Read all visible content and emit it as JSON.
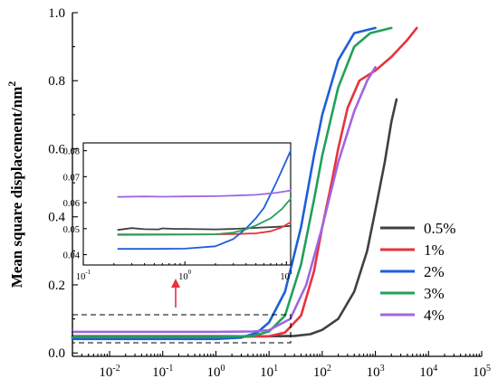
{
  "chart_data": {
    "type": "line",
    "ylabel": "Mean square displacement/nm²",
    "ylabel_base": "Mean square displacement/nm",
    "ylabel_sup": "2",
    "xscale": "log",
    "xlim": [
      0.002,
      100000
    ],
    "ylim": [
      -0.01,
      1.0
    ],
    "x_ticks": [
      {
        "value": 0.01,
        "label": "10",
        "exp": "-2"
      },
      {
        "value": 0.1,
        "label": "10",
        "exp": "-1"
      },
      {
        "value": 1,
        "label": "10",
        "exp": "0"
      },
      {
        "value": 10,
        "label": "10",
        "exp": "1"
      },
      {
        "value": 100,
        "label": "10",
        "exp": "2"
      },
      {
        "value": 1000,
        "label": "10",
        "exp": "3"
      },
      {
        "value": 10000,
        "label": "10",
        "exp": "4"
      },
      {
        "value": 100000,
        "label": "10",
        "exp": "5"
      }
    ],
    "y_ticks": [
      {
        "value": 0.0,
        "label": "0.0"
      },
      {
        "value": 0.2,
        "label": "0.2"
      },
      {
        "value": 0.4,
        "label": "0.4"
      },
      {
        "value": 0.6,
        "label": "0.6"
      },
      {
        "value": 0.8,
        "label": "0.8"
      },
      {
        "value": 1.0,
        "label": "1.0"
      }
    ],
    "legend_position": "right",
    "series": [
      {
        "name": "0.5%",
        "color": "#404040",
        "points": [
          [
            0.002,
            0.049
          ],
          [
            1,
            0.049
          ],
          [
            10,
            0.049
          ],
          [
            30,
            0.05
          ],
          [
            60,
            0.055
          ],
          [
            100,
            0.068
          ],
          [
            200,
            0.1
          ],
          [
            400,
            0.18
          ],
          [
            700,
            0.3
          ],
          [
            1000,
            0.42
          ],
          [
            1500,
            0.56
          ],
          [
            2000,
            0.68
          ],
          [
            2500,
            0.745
          ]
        ]
      },
      {
        "name": "1%",
        "color": "#e8323c",
        "points": [
          [
            0.002,
            0.047
          ],
          [
            1,
            0.047
          ],
          [
            10,
            0.049
          ],
          [
            20,
            0.06
          ],
          [
            40,
            0.11
          ],
          [
            70,
            0.24
          ],
          [
            100,
            0.37
          ],
          [
            150,
            0.5
          ],
          [
            200,
            0.6
          ],
          [
            300,
            0.72
          ],
          [
            500,
            0.8
          ],
          [
            1000,
            0.83
          ],
          [
            2000,
            0.87
          ],
          [
            4000,
            0.92
          ],
          [
            6000,
            0.955
          ]
        ]
      },
      {
        "name": "2%",
        "color": "#1e5fd8",
        "points": [
          [
            0.002,
            0.041
          ],
          [
            1,
            0.041
          ],
          [
            3,
            0.045
          ],
          [
            6,
            0.06
          ],
          [
            10,
            0.09
          ],
          [
            20,
            0.18
          ],
          [
            40,
            0.37
          ],
          [
            70,
            0.58
          ],
          [
            100,
            0.7
          ],
          [
            200,
            0.86
          ],
          [
            400,
            0.94
          ],
          [
            1000,
            0.955
          ]
        ]
      },
      {
        "name": "3%",
        "color": "#22a05a",
        "points": [
          [
            0.002,
            0.047
          ],
          [
            1,
            0.047
          ],
          [
            5,
            0.05
          ],
          [
            10,
            0.063
          ],
          [
            20,
            0.11
          ],
          [
            40,
            0.26
          ],
          [
            70,
            0.45
          ],
          [
            100,
            0.58
          ],
          [
            200,
            0.78
          ],
          [
            400,
            0.9
          ],
          [
            800,
            0.94
          ],
          [
            2000,
            0.955
          ]
        ]
      },
      {
        "name": "4%",
        "color": "#a066e0",
        "points": [
          [
            0.002,
            0.062
          ],
          [
            1,
            0.062
          ],
          [
            5,
            0.063
          ],
          [
            10,
            0.067
          ],
          [
            25,
            0.1
          ],
          [
            50,
            0.2
          ],
          [
            100,
            0.37
          ],
          [
            200,
            0.56
          ],
          [
            400,
            0.71
          ],
          [
            700,
            0.8
          ],
          [
            1000,
            0.84
          ]
        ]
      }
    ],
    "inset": {
      "xscale": "log",
      "xlim": [
        0.1,
        11
      ],
      "ylim": [
        0.036,
        0.083
      ],
      "x_ticks": [
        {
          "value": 0.1,
          "label": "10",
          "exp": "-1"
        },
        {
          "value": 1,
          "label": "10",
          "exp": "0"
        },
        {
          "value": 10,
          "label": "10",
          "exp": "1"
        }
      ],
      "y_ticks": [
        {
          "value": 0.04,
          "label": "0.04"
        },
        {
          "value": 0.05,
          "label": "0.05"
        },
        {
          "value": 0.06,
          "label": "0.06"
        },
        {
          "value": 0.07,
          "label": "0.07"
        },
        {
          "value": 0.08,
          "label": "0.08"
        }
      ],
      "series": [
        {
          "name": "0.5%",
          "color": "#404040",
          "points": [
            [
              0.22,
              0.0495
            ],
            [
              0.3,
              0.0502
            ],
            [
              0.4,
              0.0498
            ],
            [
              0.55,
              0.0497
            ],
            [
              0.6,
              0.0501
            ],
            [
              0.8,
              0.0499
            ],
            [
              1,
              0.0499
            ],
            [
              2,
              0.0497
            ],
            [
              3,
              0.0499
            ],
            [
              5,
              0.0503
            ],
            [
              8,
              0.0507
            ],
            [
              11,
              0.051
            ]
          ]
        },
        {
          "name": "1%",
          "color": "#e8323c",
          "points": [
            [
              0.22,
              0.0478
            ],
            [
              1,
              0.0478
            ],
            [
              2,
              0.0478
            ],
            [
              3,
              0.0479
            ],
            [
              5,
              0.0482
            ],
            [
              7,
              0.049
            ],
            [
              9,
              0.0505
            ],
            [
              11,
              0.0525
            ]
          ]
        },
        {
          "name": "2%",
          "color": "#1e5fd8",
          "points": [
            [
              0.22,
              0.0422
            ],
            [
              0.5,
              0.0422
            ],
            [
              1,
              0.0423
            ],
            [
              2,
              0.0432
            ],
            [
              3,
              0.046
            ],
            [
              4,
              0.05
            ],
            [
              5,
              0.054
            ],
            [
              6,
              0.058
            ],
            [
              8,
              0.068
            ],
            [
              11,
              0.08
            ]
          ]
        },
        {
          "name": "3%",
          "color": "#22a05a",
          "points": [
            [
              0.22,
              0.0476
            ],
            [
              1,
              0.0477
            ],
            [
              2,
              0.0478
            ],
            [
              3,
              0.0485
            ],
            [
              4,
              0.0497
            ],
            [
              5,
              0.0512
            ],
            [
              7,
              0.054
            ],
            [
              9,
              0.0575
            ],
            [
              11,
              0.0615
            ]
          ]
        },
        {
          "name": "4%",
          "color": "#a066e0",
          "points": [
            [
              0.22,
              0.0622
            ],
            [
              0.4,
              0.0624
            ],
            [
              0.6,
              0.0623
            ],
            [
              1,
              0.0624
            ],
            [
              2,
              0.0625
            ],
            [
              3,
              0.0627
            ],
            [
              5,
              0.063
            ],
            [
              8,
              0.0638
            ],
            [
              11,
              0.0647
            ]
          ]
        }
      ]
    }
  }
}
